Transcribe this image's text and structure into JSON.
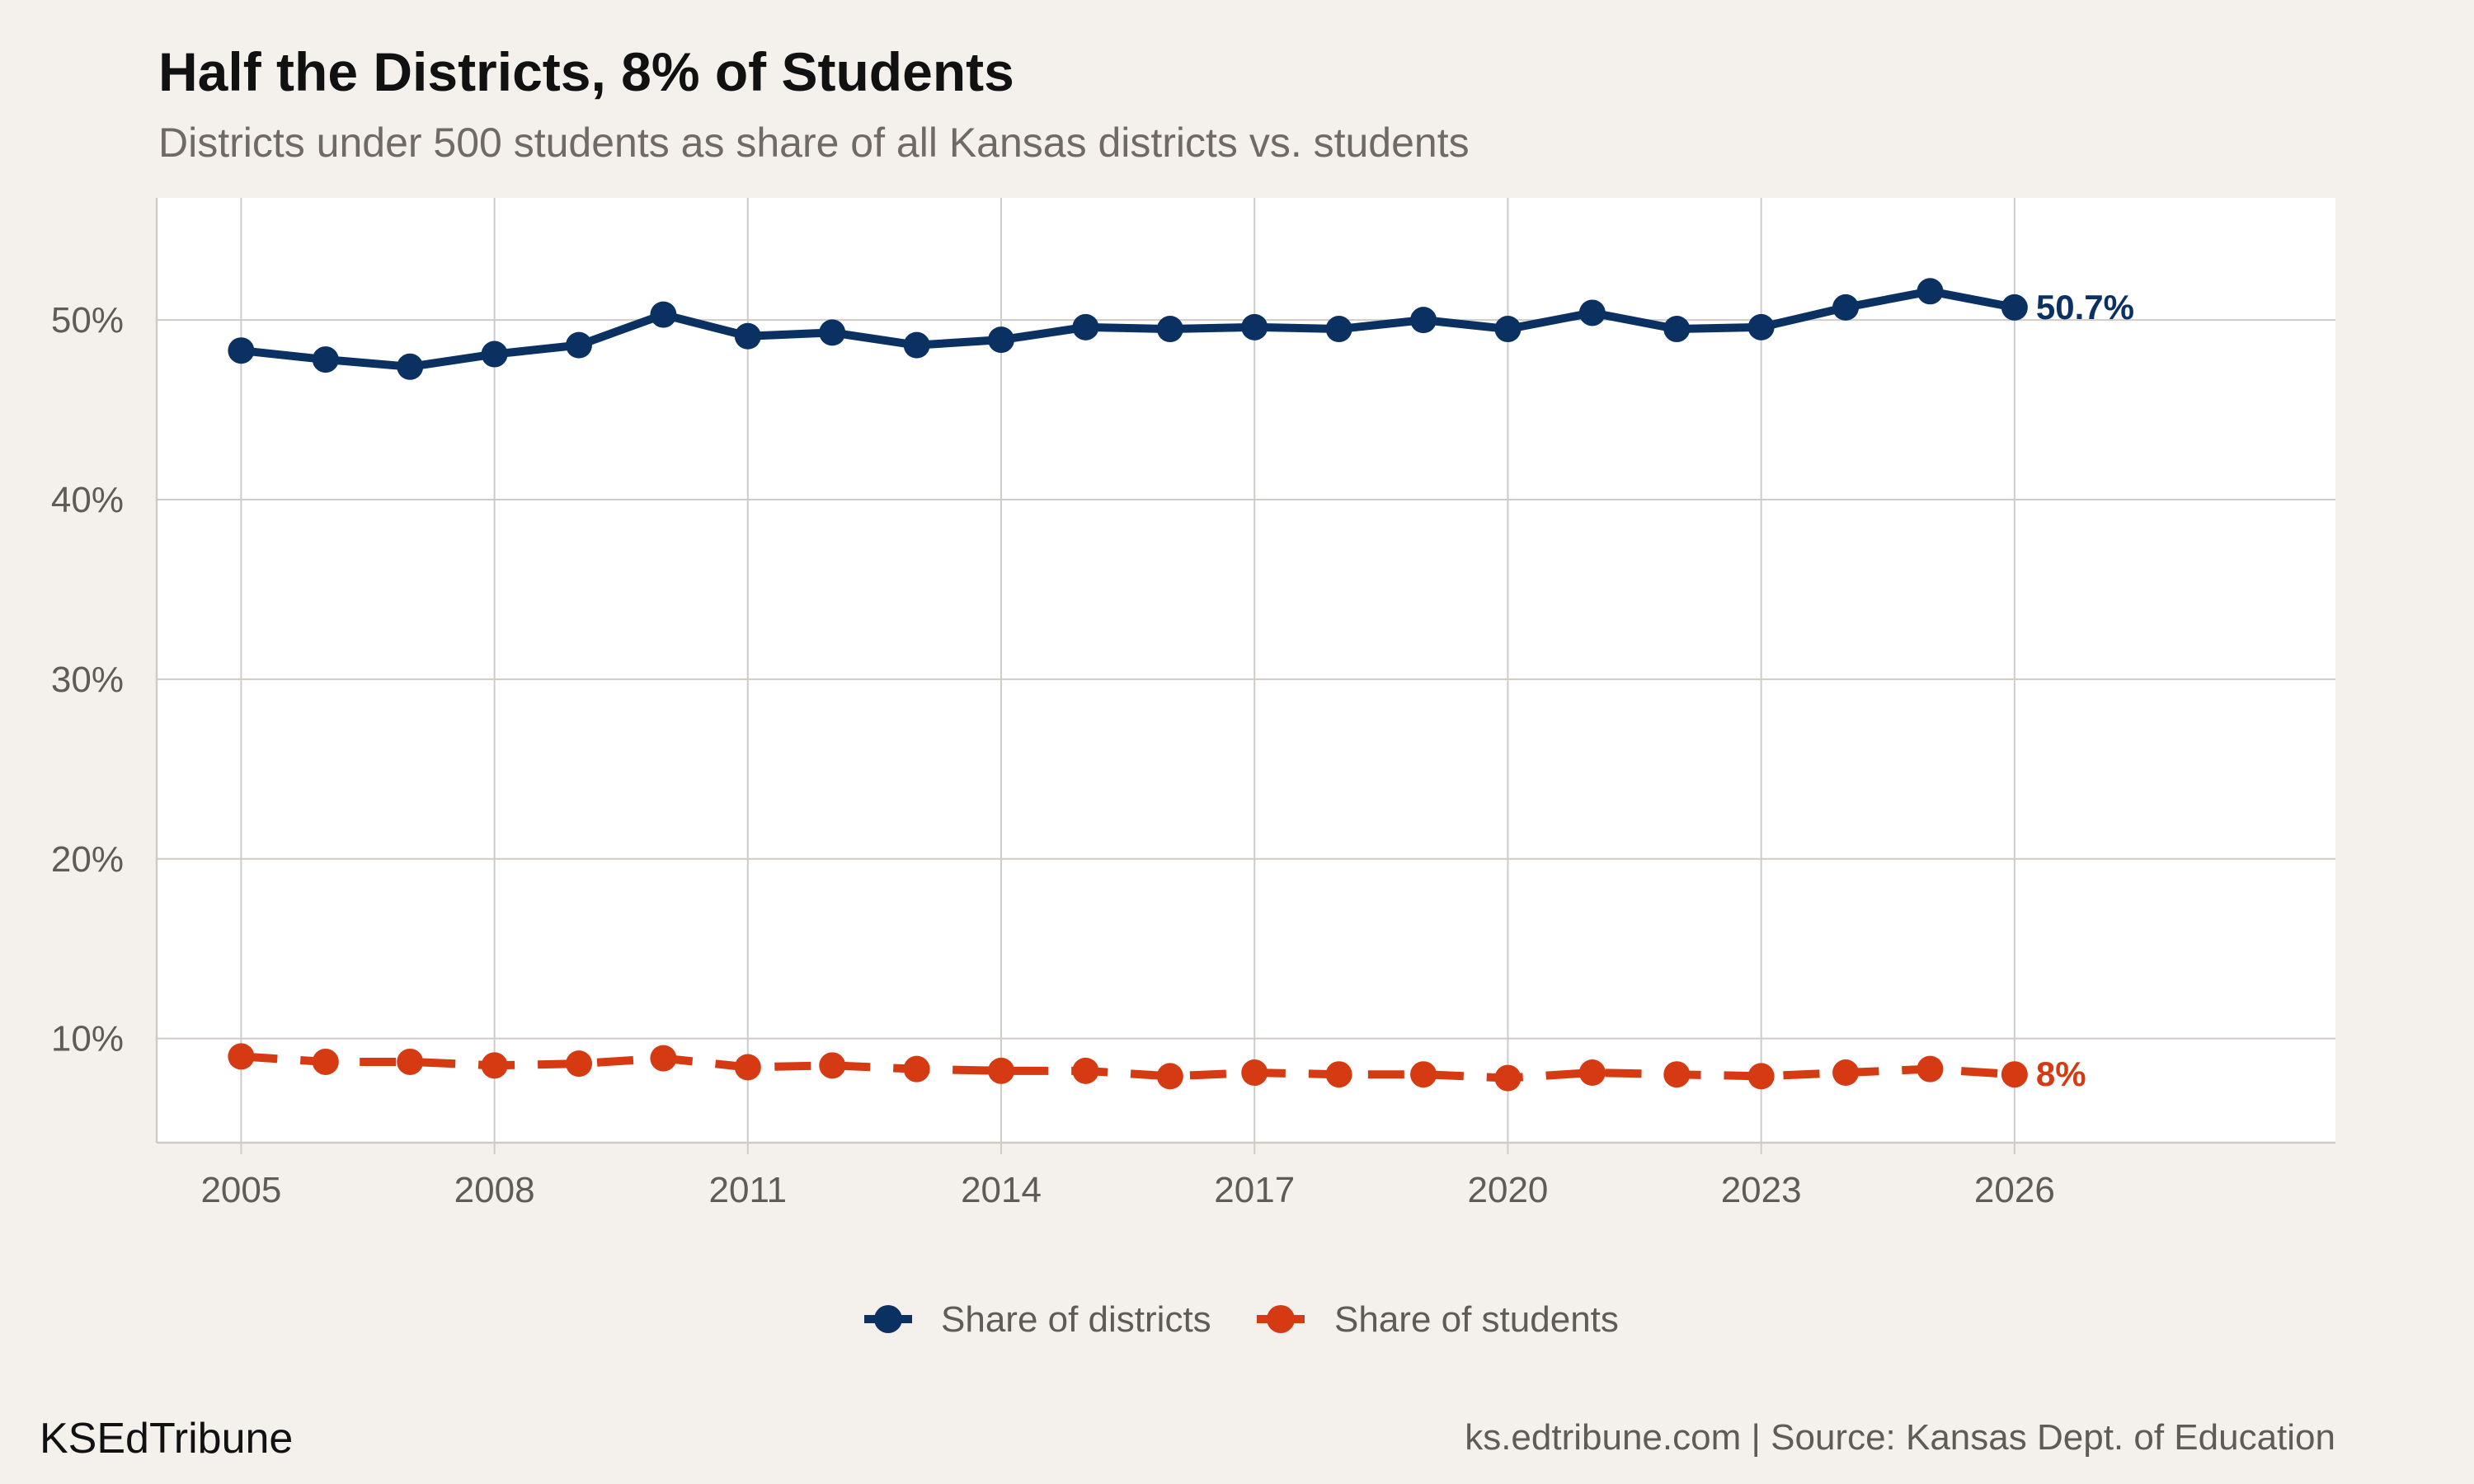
{
  "header": {
    "title": "Half the Districts, 8% of Students",
    "subtitle": "Districts under 500 students as share of all Kansas districts vs. students"
  },
  "footer": {
    "brand": "KSEdTribune",
    "source": "ks.edtribune.com | Source: Kansas Dept. of Education"
  },
  "colors": {
    "background": "#f4f1ec",
    "panel": "#ffffff",
    "grid": "#cfcbc6",
    "districts": "#0b3163",
    "students": "#d63a13"
  },
  "chart_data": {
    "type": "line",
    "title": "Half the Districts, 8% of Students",
    "subtitle": "Districts under 500 students as share of all Kansas districts vs. students",
    "xlabel": "",
    "ylabel": "",
    "x": [
      2005,
      2006,
      2007,
      2008,
      2009,
      2010,
      2011,
      2012,
      2013,
      2014,
      2015,
      2016,
      2017,
      2018,
      2019,
      2020,
      2021,
      2022,
      2023,
      2024,
      2025,
      2026
    ],
    "xlim": [
      2004,
      2029.8
    ],
    "ylim": [
      4.2,
      56.8
    ],
    "x_ticks": [
      2005,
      2008,
      2011,
      2014,
      2017,
      2020,
      2023,
      2026
    ],
    "x_tick_labels": [
      "2005",
      "2008",
      "2011",
      "2014",
      "2017",
      "2020",
      "2023",
      "2026"
    ],
    "y_ticks": [
      10,
      20,
      30,
      40,
      50
    ],
    "y_tick_labels": [
      "10%",
      "20%",
      "30%",
      "40%",
      "50%"
    ],
    "grid": true,
    "legend_position": "bottom",
    "series": [
      {
        "name": "Share of districts",
        "line_style": "solid",
        "color": "#0b3163",
        "values": [
          48.3,
          47.8,
          47.4,
          48.1,
          48.6,
          50.3,
          49.1,
          49.3,
          48.6,
          48.9,
          49.6,
          49.5,
          49.6,
          49.5,
          50.0,
          49.5,
          50.4,
          49.5,
          49.6,
          50.7,
          51.6,
          50.7
        ],
        "end_label": "50.7%"
      },
      {
        "name": "Share of students",
        "line_style": "dashed",
        "color": "#d63a13",
        "values": [
          9.0,
          8.7,
          8.7,
          8.5,
          8.6,
          8.9,
          8.4,
          8.5,
          8.3,
          8.2,
          8.2,
          7.9,
          8.1,
          8.0,
          8.0,
          7.8,
          8.1,
          8.0,
          7.9,
          8.1,
          8.3,
          8.0
        ],
        "end_label": "8%"
      }
    ]
  }
}
